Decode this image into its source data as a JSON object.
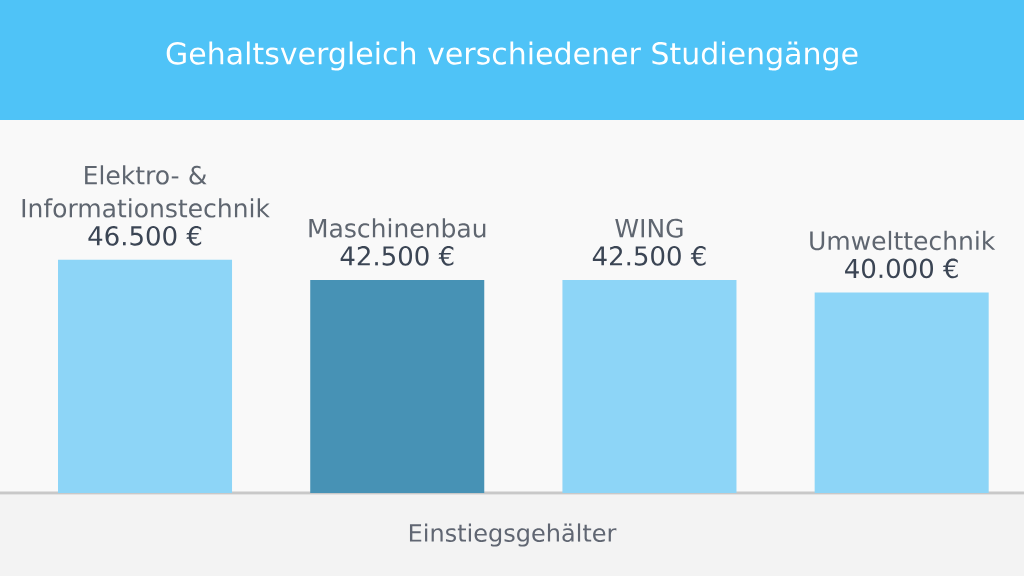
{
  "chart_data": {
    "type": "bar",
    "title": "Gehaltsvergleich verschiedener Studiengänge",
    "xlabel": "Einstiegsgehälter",
    "categories": [
      "Elektro- & Informationstechnik",
      "Maschinenbau",
      "WING",
      "Umwelttechnik"
    ],
    "values": [
      46500,
      42500,
      42500,
      40000
    ],
    "colors": [
      "#8dd5f7",
      "#4792b5",
      "#8dd5f7",
      "#8dd5f7"
    ],
    "value_labels": [
      "46.500 €",
      "42.500 €",
      "42.500 €",
      "40.000 €"
    ]
  }
}
